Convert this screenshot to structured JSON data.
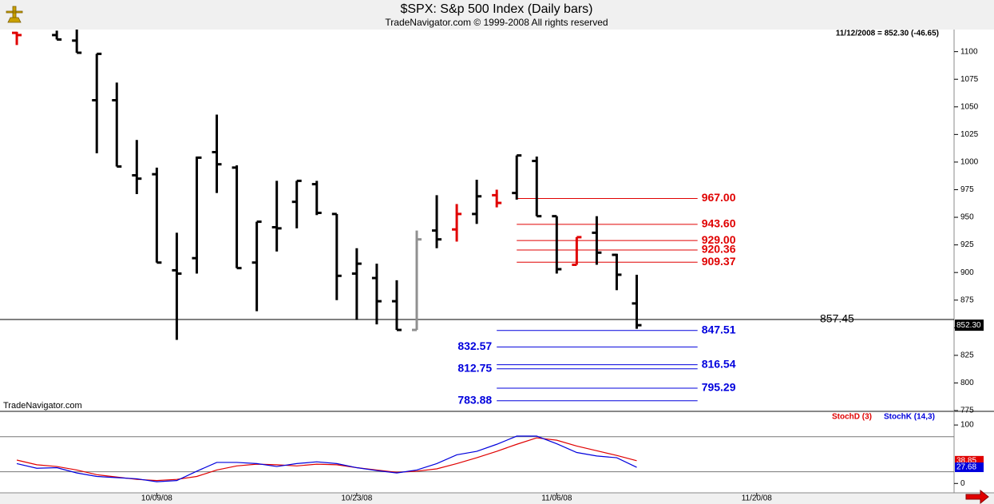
{
  "chart_data": [
    {
      "type": "ohlc",
      "title": "$SPX:  S&p 500 Index  (Daily bars)",
      "subtitle": "TradeNavigator.com © 1999-2008 All rights reserved",
      "annotation": "11/12/2008 = 852.30 (-46.65)",
      "watermark": "TradeNavigator.com",
      "open": [
        1117,
        null,
        1115,
        1110,
        1056,
        1056,
        988,
        989,
        902,
        913,
        1009,
        995,
        909,
        941,
        964,
        980,
        953,
        899,
        895,
        874,
        848,
        938,
        939,
        953,
        970,
        972,
        1001,
        951,
        907,
        936,
        916,
        872
      ],
      "high": [
        1118,
        null,
        1119,
        1120,
        1098,
        1072,
        1020,
        995,
        936,
        1005,
        1043,
        997,
        946,
        983,
        983,
        983,
        953,
        922,
        908,
        893,
        938,
        970,
        962,
        984,
        975,
        1006,
        1005,
        951,
        932,
        951,
        917,
        898
      ],
      "low": [
        1106,
        null,
        1111,
        1099,
        1008,
        996,
        971,
        909,
        839,
        899,
        972,
        904,
        865,
        919,
        940,
        952,
        875,
        857,
        853,
        848,
        848,
        922,
        928,
        944,
        959,
        966,
        951,
        899,
        907,
        907,
        884,
        849
      ],
      "close": [
        1115,
        null,
        1111,
        1099,
        1098,
        996,
        985,
        909,
        899,
        1004,
        998,
        904,
        946,
        940,
        983,
        954,
        897,
        908,
        874,
        848,
        930,
        930,
        953,
        969,
        963,
        1006,
        951,
        903,
        932,
        918,
        898,
        852.3
      ],
      "colors": [
        "#e00000",
        "#000000",
        "#000000",
        "#000000",
        "#000000",
        "#000000",
        "#000000",
        "#000000",
        "#000000",
        "#000000",
        "#000000",
        "#000000",
        "#000000",
        "#000000",
        "#000000",
        "#000000",
        "#000000",
        "#000000",
        "#000000",
        "#000000",
        "#909090",
        "#000000",
        "#e00000",
        "#000000",
        "#e00000",
        "#000000",
        "#000000",
        "#000000",
        "#e00000",
        "#000000",
        "#000000",
        "#000000"
      ],
      "price_marker": {
        "value": 852.3,
        "label": "852.30"
      },
      "hline": {
        "value": 857.45,
        "label": "857.45"
      },
      "levels": [
        {
          "value": 967.0,
          "label": "967.00",
          "color": "#e00000",
          "side": "right",
          "xrange": [
            25,
            35
          ]
        },
        {
          "value": 943.6,
          "label": "943.60",
          "color": "#e00000",
          "side": "right",
          "xrange": [
            25,
            35
          ]
        },
        {
          "value": 929.0,
          "label": "929.00",
          "color": "#e00000",
          "side": "right",
          "xrange": [
            25,
            35
          ]
        },
        {
          "value": 920.36,
          "label": "920.36",
          "color": "#e00000",
          "side": "right",
          "xrange": [
            25,
            35
          ]
        },
        {
          "value": 909.37,
          "label": "909.37",
          "color": "#e00000",
          "side": "right",
          "xrange": [
            25,
            35
          ]
        },
        {
          "value": 847.51,
          "label": "847.51",
          "color": "#0000dd",
          "side": "right",
          "xrange": [
            24,
            35
          ]
        },
        {
          "value": 832.57,
          "label": "832.57",
          "color": "#0000dd",
          "side": "left",
          "xrange": [
            24,
            35
          ]
        },
        {
          "value": 816.54,
          "label": "816.54",
          "color": "#0000dd",
          "side": "right",
          "xrange": [
            24,
            35
          ]
        },
        {
          "value": 812.75,
          "label": "812.75",
          "color": "#0000dd",
          "side": "left",
          "xrange": [
            24,
            35
          ]
        },
        {
          "value": 795.29,
          "label": "795.29",
          "color": "#0000dd",
          "side": "right",
          "xrange": [
            24,
            35
          ]
        },
        {
          "value": 783.88,
          "label": "783.88",
          "color": "#0000dd",
          "side": "left",
          "xrange": [
            24,
            35
          ]
        }
      ],
      "xlim": [
        -0.84,
        46.87
      ],
      "ylim": [
        775,
        1120
      ],
      "yticks": [
        775,
        800,
        825,
        850,
        875,
        900,
        925,
        950,
        975,
        1000,
        1025,
        1050,
        1075,
        1100
      ]
    },
    {
      "type": "line",
      "series": [
        {
          "name": "StochD (3)",
          "color": "#e00000",
          "values": [
            40,
            32,
            29,
            23,
            15,
            11,
            7,
            5,
            7,
            12,
            23,
            30,
            33,
            32,
            30,
            33,
            32,
            27,
            23,
            19,
            21,
            25,
            34,
            44,
            55,
            67,
            78,
            74,
            64,
            56,
            48,
            38.85
          ],
          "end_label": {
            "value": 38.85,
            "label": "38.85"
          }
        },
        {
          "name": "StochK (14,3)",
          "color": "#0000dd",
          "values": [
            34,
            26,
            27,
            18,
            12,
            10,
            8,
            3,
            5,
            21,
            36,
            36,
            34,
            29,
            34,
            37,
            34,
            27,
            22,
            18,
            23,
            34,
            49,
            55,
            67,
            81,
            81,
            68,
            53,
            47,
            44,
            27.68
          ],
          "end_label": {
            "value": 27.68,
            "label": "27.68"
          }
        }
      ],
      "hlines": [
        20,
        80
      ],
      "xlim": [
        -0.84,
        46.87
      ],
      "xticks": [
        {
          "value": 7,
          "label": "10/09/08"
        },
        {
          "value": 17,
          "label": "10/23/08"
        },
        {
          "value": 27,
          "label": "11/06/08"
        },
        {
          "value": 37,
          "label": "11/20/08"
        }
      ],
      "ylim": [
        -16,
        122
      ],
      "yticks": [
        0,
        100
      ]
    }
  ]
}
